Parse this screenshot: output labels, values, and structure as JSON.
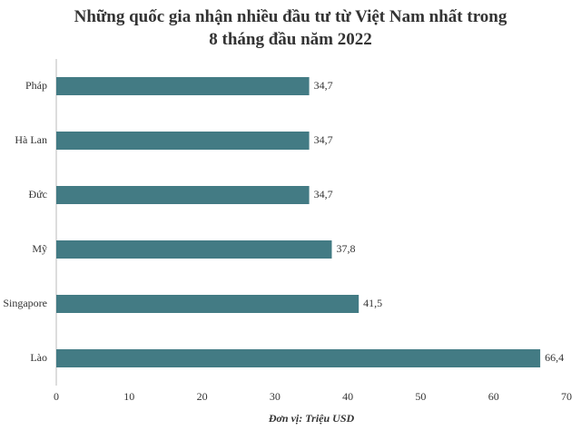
{
  "chart_data": {
    "type": "bar",
    "orientation": "horizontal",
    "title": "Những quốc gia nhận nhiều đầu tư từ Việt Nam nhất trong 8 tháng đầu năm 2022",
    "x_label": "Đơn vị: Triệu USD",
    "categories": [
      "Pháp",
      "Hà Lan",
      "Đức",
      "Mỹ",
      "Singapore",
      "Lào"
    ],
    "values": [
      34.7,
      34.7,
      34.7,
      37.8,
      41.5,
      66.4
    ],
    "value_labels": [
      "34,7",
      "34,7",
      "34,7",
      "37,8",
      "41,5",
      "66,4"
    ],
    "color": "#437b84",
    "xlim": [
      0,
      70
    ],
    "xticks": [
      0,
      10,
      20,
      30,
      40,
      50,
      60,
      70
    ],
    "grid": false
  }
}
